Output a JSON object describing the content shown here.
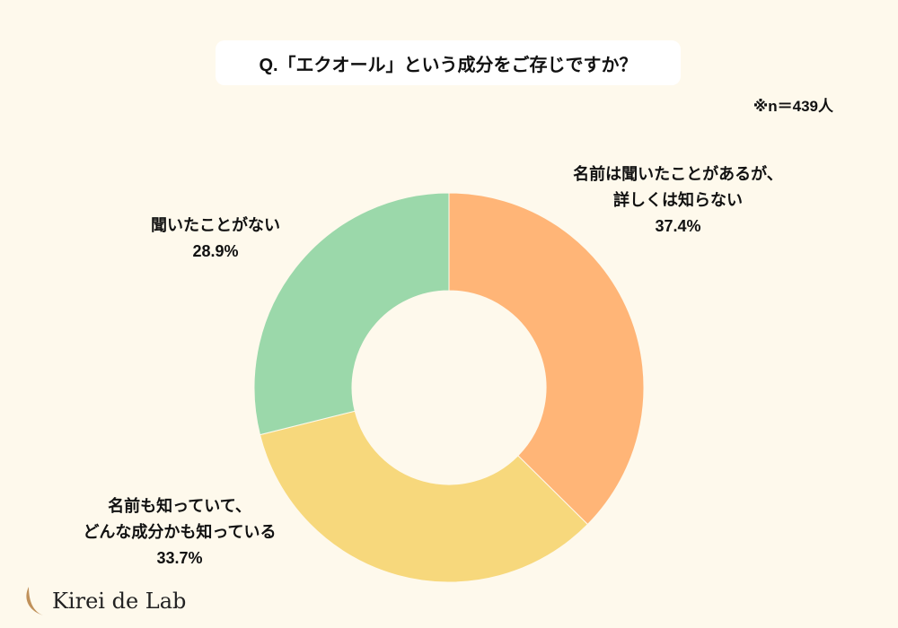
{
  "title": "Q.「エクオール」という成分をご存じですか？",
  "note": "※n＝439人",
  "logo": "Kirei de Lab",
  "chart_data": {
    "type": "pie",
    "donut": true,
    "title": "Q.「エクオール」という成分をご存じですか？",
    "categories": [
      "名前は聞いたことがあるが、詳しくは知らない",
      "名前も知っていて、どんな成分かも知っている",
      "聞いたことがない"
    ],
    "values": [
      37.4,
      33.7,
      28.9
    ],
    "value_labels": [
      "37.4%",
      "33.7%",
      "28.9%"
    ],
    "label_lines": [
      [
        "名前は聞いたことがあるが、",
        "詳しくは知らない"
      ],
      [
        "名前も知っていて、",
        "どんな成分かも知っている"
      ],
      [
        "聞いたことがない"
      ]
    ],
    "colors": [
      "#ffb577",
      "#f7d87c",
      "#9bd8aa"
    ]
  }
}
